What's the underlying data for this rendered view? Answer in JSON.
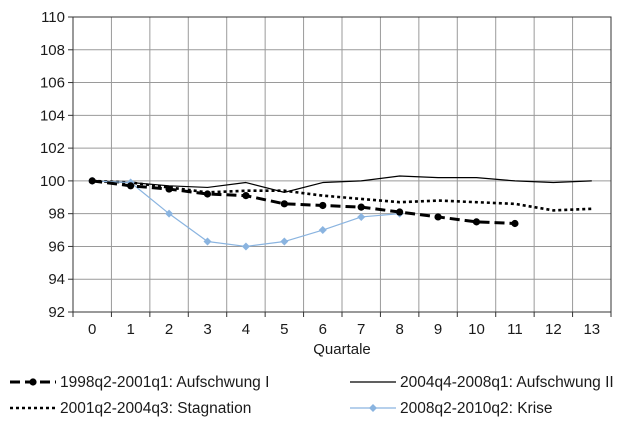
{
  "chart_data": {
    "type": "line",
    "xlabel": "Quartale",
    "ylabel": "",
    "x": [
      0,
      1,
      2,
      3,
      4,
      5,
      6,
      7,
      8,
      9,
      10,
      11,
      12,
      13
    ],
    "xlim": [
      -0.5,
      13.5
    ],
    "ylim": [
      92,
      110
    ],
    "yticks": [
      92,
      94,
      96,
      98,
      100,
      102,
      104,
      106,
      108,
      110
    ],
    "grid": true,
    "legend_position": "bottom",
    "series": [
      {
        "name": "1998q2-2001q1: Aufschwung I",
        "style": "dashed-thick-markers",
        "color": "#000000",
        "x": [
          0,
          1,
          2,
          3,
          4,
          5,
          6,
          7,
          8,
          9,
          10,
          11
        ],
        "values": [
          100.0,
          99.7,
          99.5,
          99.2,
          99.1,
          98.6,
          98.5,
          98.4,
          98.1,
          97.8,
          97.5,
          97.4
        ]
      },
      {
        "name": "2004q4-2008q1: Aufschwung II",
        "style": "solid-thin",
        "color": "#000000",
        "x": [
          0,
          1,
          2,
          3,
          4,
          5,
          6,
          7,
          8,
          9,
          10,
          11,
          12,
          13
        ],
        "values": [
          100.0,
          99.9,
          99.7,
          99.6,
          99.9,
          99.3,
          99.9,
          100.0,
          100.3,
          100.2,
          100.2,
          100.0,
          99.9,
          100.0
        ]
      },
      {
        "name": "2001q2-2004q3: Stagnation",
        "style": "dotted",
        "color": "#000000",
        "x": [
          0,
          1,
          2,
          3,
          4,
          5,
          6,
          7,
          8,
          9,
          10,
          11,
          12,
          13
        ],
        "values": [
          100.0,
          99.9,
          99.6,
          99.3,
          99.4,
          99.4,
          99.1,
          98.9,
          98.7,
          98.8,
          98.7,
          98.6,
          98.2,
          98.3
        ]
      },
      {
        "name": "2008q2-2010q2: Krise",
        "style": "solid-diamond",
        "color": "#8ab4e0",
        "x": [
          0,
          1,
          2,
          3,
          4,
          5,
          6,
          7,
          8
        ],
        "values": [
          100.0,
          99.9,
          98.0,
          96.3,
          96.0,
          96.3,
          97.0,
          97.8,
          98.0
        ]
      }
    ]
  }
}
